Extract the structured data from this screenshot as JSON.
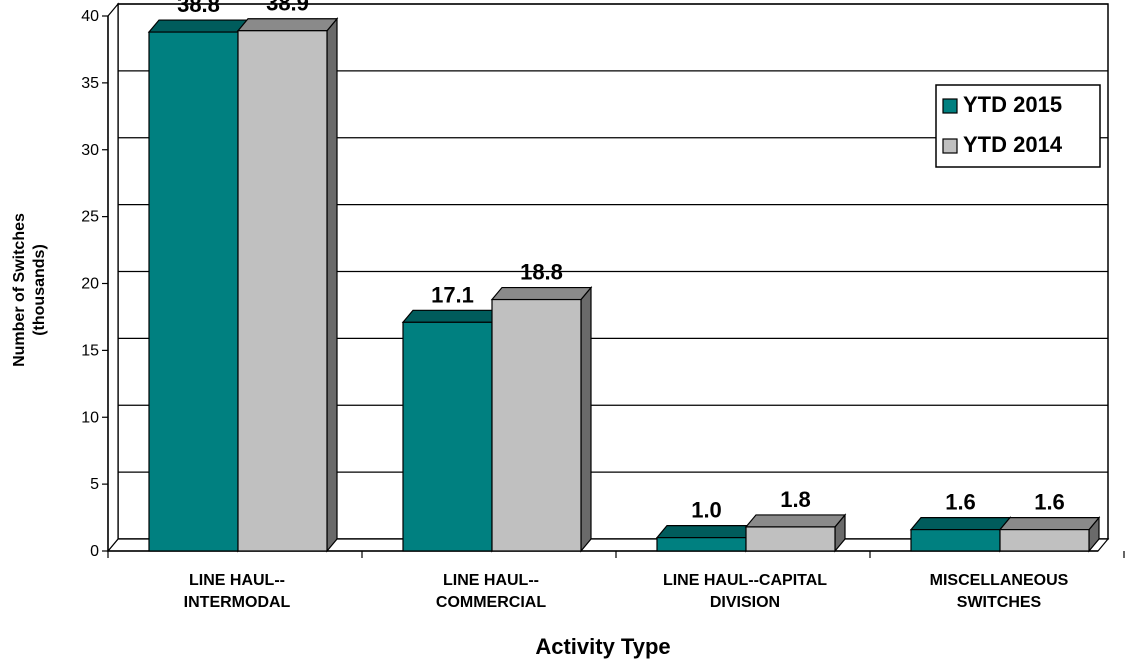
{
  "chart_data": {
    "type": "bar",
    "categories": [
      [
        "LINE HAUL--",
        "INTERMODAL"
      ],
      [
        "LINE HAUL--",
        "COMMERCIAL"
      ],
      [
        "LINE HAUL--CAPITAL",
        "DIVISION"
      ],
      [
        "MISCELLANEOUS",
        "SWITCHES"
      ]
    ],
    "series": [
      {
        "name": "YTD 2015",
        "values": [
          38.8,
          17.1,
          1.0,
          1.6
        ],
        "labels": [
          "38.8",
          "17.1",
          "1.0",
          "1.6"
        ],
        "color": "#008080"
      },
      {
        "name": "YTD 2014",
        "values": [
          38.9,
          18.8,
          1.8,
          1.6
        ],
        "labels": [
          "38.9",
          "18.8",
          "1.8",
          "1.6"
        ],
        "color": "#c0c0c0"
      }
    ],
    "xlabel": "Activity Type",
    "ylabel": [
      "Number of Switches",
      "(thousands)"
    ],
    "ylim": [
      0,
      40
    ],
    "yticks": [
      0,
      5,
      10,
      15,
      20,
      25,
      30,
      35,
      40
    ],
    "grid": true,
    "legend": "top-right",
    "style": "3d-bar"
  }
}
